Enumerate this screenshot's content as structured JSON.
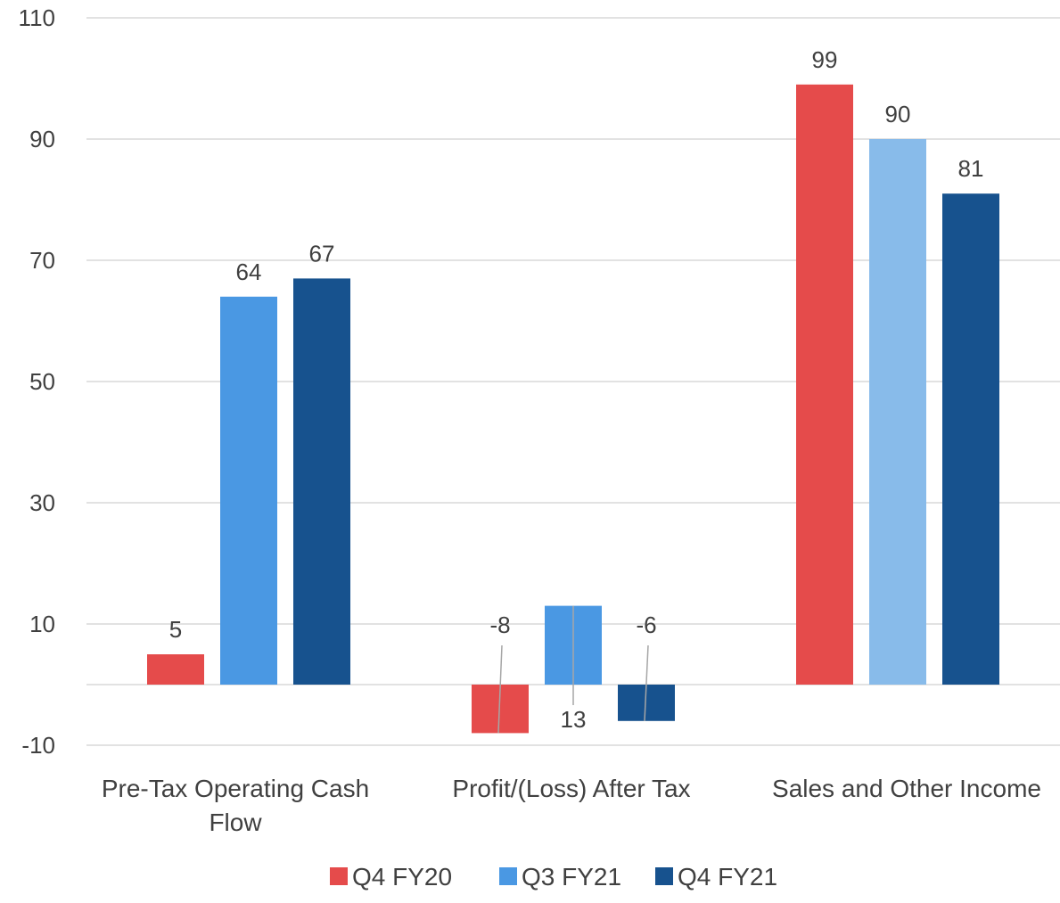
{
  "chart_data": {
    "type": "bar",
    "title": "",
    "xlabel": "",
    "ylabel": "",
    "categories": [
      [
        "Pre-Tax Operating Cash",
        "Flow"
      ],
      [
        "Profit/(Loss) After Tax"
      ],
      [
        "Sales and Other Income"
      ]
    ],
    "series": [
      {
        "name": "Q4 FY20",
        "values": [
          5,
          -8,
          99
        ],
        "color": "#e54b4b",
        "colors": [
          "#e54b4b",
          "#e54b4b",
          "#e54b4b"
        ]
      },
      {
        "name": "Q3 FY21",
        "values": [
          64,
          13,
          90
        ],
        "color": "#4a98e3",
        "colors": [
          "#4a98e3",
          "#4a98e3",
          "#88bbea"
        ]
      },
      {
        "name": "Q4 FY21",
        "values": [
          67,
          -6,
          81
        ],
        "color": "#17528e",
        "colors": [
          "#17528e",
          "#17528e",
          "#17528e"
        ]
      }
    ],
    "data_labels": [
      [
        "5",
        "-8",
        "99"
      ],
      [
        "64",
        "13",
        "90"
      ],
      [
        "67",
        "-6",
        "81"
      ]
    ],
    "yticks": [
      -10,
      10,
      30,
      50,
      70,
      90,
      110
    ],
    "ylim": [
      -10,
      110
    ],
    "grid": true,
    "legend_position": "bottom",
    "leader_line_color": "#a6a6a6",
    "grid_color": "#d9d9d9"
  }
}
